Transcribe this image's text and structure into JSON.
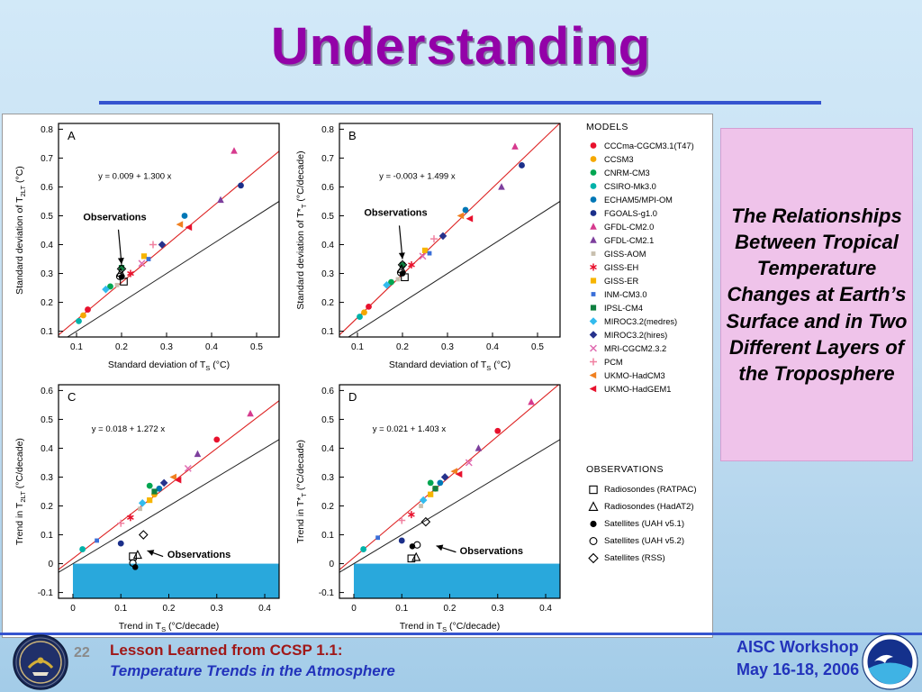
{
  "slide": {
    "title": "Understanding",
    "side_note": "The Relationships Between Tropical Temperature Changes at Earth’s Surface and in Two Different Layers of the Troposphere",
    "page_number": "22",
    "footer": {
      "credit_line1": "Lesson Learned from CCSP 1.1:",
      "credit_line2": "Temperature Trends in the Atmosphere",
      "event": "AISC Workshop",
      "dates": "May 16-18, 2006"
    },
    "colors": {
      "title_color": "#9302a8",
      "accent_color": "#3554cf",
      "note_bg": "#efc3ea",
      "footer_red": "#a01818",
      "footer_blue": "#2233bb"
    }
  },
  "figure": {
    "models_header": "MODELS",
    "observations_header": "OBSERVATIONS"
  },
  "chart_data": {
    "type": "scatter",
    "fit_color": "#dd2222",
    "identity_color": "#222222",
    "models": [
      {
        "name": "CCCma-CGCM3.1(T47)",
        "color": "#e8112d",
        "marker": "circle"
      },
      {
        "name": "CCSM3",
        "color": "#f5a800",
        "marker": "circle"
      },
      {
        "name": "CNRM-CM3",
        "color": "#00a651",
        "marker": "circle"
      },
      {
        "name": "CSIRO-Mk3.0",
        "color": "#00b2a9",
        "marker": "circle"
      },
      {
        "name": "ECHAM5/MPI-OM",
        "color": "#0077b6",
        "marker": "circle"
      },
      {
        "name": "FGOALS-g1.0",
        "color": "#1b2f8a",
        "marker": "circle"
      },
      {
        "name": "GFDL-CM2.0",
        "color": "#d63a8e",
        "marker": "triangle-up"
      },
      {
        "name": "GFDL-CM2.1",
        "color": "#7d3f9d",
        "marker": "triangle-up"
      },
      {
        "name": "GISS-AOM",
        "color": "#c8bfae",
        "marker": "square-small"
      },
      {
        "name": "GISS-EH",
        "color": "#e8112d",
        "marker": "asterisk"
      },
      {
        "name": "GISS-ER",
        "color": "#f7b500",
        "marker": "square"
      },
      {
        "name": "INM-CM3.0",
        "color": "#3a6fd8",
        "marker": "square-small"
      },
      {
        "name": "IPSL-CM4",
        "color": "#0f8040",
        "marker": "square"
      },
      {
        "name": "MIROC3.2(medres)",
        "color": "#33bbee",
        "marker": "diamond"
      },
      {
        "name": "MIROC3.2(hires)",
        "color": "#26328c",
        "marker": "diamond"
      },
      {
        "name": "MRI-CGCM2.3.2",
        "color": "#e06bb0",
        "marker": "x-mark"
      },
      {
        "name": "PCM",
        "color": "#f080a0",
        "marker": "plus"
      },
      {
        "name": "UKMO-HadCM3",
        "color": "#f08020",
        "marker": "triangle-left"
      },
      {
        "name": "UKMO-HadGEM1",
        "color": "#e8112d",
        "marker": "triangle-left"
      }
    ],
    "observation_series": [
      {
        "name": "Radiosondes (RATPAC)",
        "marker": "open-square"
      },
      {
        "name": "Radiosondes (HadAT2)",
        "marker": "open-triangle"
      },
      {
        "name": "Satellites (UAH v5.1)",
        "marker": "dot"
      },
      {
        "name": "Satellites (UAH v5.2)",
        "marker": "open-circle"
      },
      {
        "name": "Satellites (RSS)",
        "marker": "open-diamond"
      }
    ],
    "panels": [
      {
        "id": "A",
        "equation": "y = 0.009 + 1.300 x",
        "fit": {
          "intercept": 0.009,
          "slope": 1.3
        },
        "xlabel": "Standard deviation of T~S~ (°C)",
        "ylabel": "Standard deviation of T~2LT~ (°C)",
        "xlim": [
          0.06,
          0.55
        ],
        "ylim": [
          0.08,
          0.82
        ],
        "xticks": [
          0.1,
          0.2,
          0.3,
          0.4,
          0.5
        ],
        "yticks": [
          0.1,
          0.2,
          0.3,
          0.4,
          0.5,
          0.6,
          0.7,
          0.8
        ],
        "eq_pos": [
          0.18,
          0.26
        ],
        "points": [
          [
            0.125,
            0.175
          ],
          [
            0.115,
            0.155
          ],
          [
            0.175,
            0.255
          ],
          [
            0.105,
            0.135
          ],
          [
            0.34,
            0.5
          ],
          [
            0.465,
            0.605
          ],
          [
            0.45,
            0.725
          ],
          [
            0.42,
            0.555
          ],
          [
            0.19,
            0.26
          ],
          [
            0.22,
            0.3
          ],
          [
            0.25,
            0.36
          ],
          [
            0.26,
            0.35
          ],
          [
            0.2,
            0.32
          ],
          [
            0.165,
            0.245
          ],
          [
            0.29,
            0.4
          ],
          [
            0.245,
            0.335
          ],
          [
            0.27,
            0.4
          ],
          [
            0.33,
            0.47
          ],
          [
            0.35,
            0.46
          ]
        ],
        "observations": [
          [
            0.205,
            0.272
          ],
          [
            0.198,
            0.302
          ],
          [
            0.2,
            0.288
          ],
          [
            0.196,
            0.29
          ],
          [
            0.2,
            0.316
          ]
        ],
        "annotation": {
          "label": "Observations",
          "lx": 0.185,
          "ly": 0.485,
          "ax": 0.193,
          "ay": 0.452,
          "bx": 0.2,
          "by": 0.332
        },
        "shade": null
      },
      {
        "id": "B",
        "equation": "y = -0.003 + 1.499 x",
        "fit": {
          "intercept": -0.003,
          "slope": 1.499
        },
        "xlabel": "Standard deviation of T~S~ (°C)",
        "ylabel": "Standard deviation of T*~T~ (°C/decade)",
        "xlim": [
          0.06,
          0.55
        ],
        "ylim": [
          0.08,
          0.82
        ],
        "xticks": [
          0.1,
          0.2,
          0.3,
          0.4,
          0.5
        ],
        "yticks": [
          0.1,
          0.2,
          0.3,
          0.4,
          0.5,
          0.6,
          0.7,
          0.8
        ],
        "eq_pos": [
          0.18,
          0.26
        ],
        "points": [
          [
            0.125,
            0.185
          ],
          [
            0.115,
            0.165
          ],
          [
            0.175,
            0.27
          ],
          [
            0.105,
            0.15
          ],
          [
            0.34,
            0.52
          ],
          [
            0.465,
            0.675
          ],
          [
            0.45,
            0.74
          ],
          [
            0.42,
            0.6
          ],
          [
            0.19,
            0.28
          ],
          [
            0.22,
            0.33
          ],
          [
            0.25,
            0.38
          ],
          [
            0.26,
            0.37
          ],
          [
            0.2,
            0.33
          ],
          [
            0.165,
            0.26
          ],
          [
            0.29,
            0.43
          ],
          [
            0.245,
            0.36
          ],
          [
            0.27,
            0.42
          ],
          [
            0.33,
            0.5
          ],
          [
            0.35,
            0.49
          ]
        ],
        "observations": [
          [
            0.205,
            0.287
          ],
          [
            0.198,
            0.315
          ],
          [
            0.2,
            0.3
          ],
          [
            0.196,
            0.303
          ],
          [
            0.2,
            0.33
          ]
        ],
        "annotation": {
          "label": "Observations",
          "lx": 0.185,
          "ly": 0.5,
          "ax": 0.193,
          "ay": 0.466,
          "bx": 0.2,
          "by": 0.35
        },
        "shade": null
      },
      {
        "id": "C",
        "equation": "y = 0.018 + 1.272 x",
        "fit": {
          "intercept": 0.018,
          "slope": 1.272
        },
        "xlabel": "Trend in T~S~ (°C/decade)",
        "ylabel": "Trend in T~2LT~ (°C/decade)",
        "xlim": [
          -0.03,
          0.43
        ],
        "ylim": [
          -0.12,
          0.62
        ],
        "xticks": [
          0,
          0.1,
          0.2,
          0.3,
          0.4
        ],
        "yticks": [
          -0.1,
          0,
          0.1,
          0.2,
          0.3,
          0.4,
          0.5,
          0.6
        ],
        "eq_pos": [
          0.15,
          0.22
        ],
        "points": [
          [
            0.3,
            0.43
          ],
          [
            0.17,
            0.24
          ],
          [
            0.16,
            0.27
          ],
          [
            0.02,
            0.05
          ],
          [
            0.18,
            0.26
          ],
          [
            0.1,
            0.07
          ],
          [
            0.37,
            0.52
          ],
          [
            0.26,
            0.38
          ],
          [
            0.14,
            0.19
          ],
          [
            0.12,
            0.16
          ],
          [
            0.16,
            0.22
          ],
          [
            0.05,
            0.08
          ],
          [
            0.17,
            0.25
          ],
          [
            0.145,
            0.21
          ],
          [
            0.19,
            0.28
          ],
          [
            0.24,
            0.33
          ],
          [
            0.1,
            0.14
          ],
          [
            0.21,
            0.3
          ],
          [
            0.22,
            0.29
          ]
        ],
        "observations": [
          [
            0.125,
            0.025
          ],
          [
            0.135,
            0.03
          ],
          [
            0.13,
            -0.012
          ],
          [
            0.125,
            0.002
          ],
          [
            0.147,
            0.1
          ]
        ],
        "annotation": {
          "label": "Observations",
          "lx": 0.263,
          "ly": 0.02,
          "ax": 0.188,
          "ay": 0.025,
          "bx": 0.155,
          "by": 0.045
        },
        "shade": {
          "x0": 0,
          "x1": 0.43,
          "y0": -0.12,
          "y1": 0,
          "color": "#29a8dc"
        }
      },
      {
        "id": "D",
        "equation": "y = 0.021 + 1.403 x",
        "fit": {
          "intercept": 0.021,
          "slope": 1.403
        },
        "xlabel": "Trend in T~S~ (°C/decade)",
        "ylabel": "Trend in T*~T~ (°C/decade)",
        "xlim": [
          -0.03,
          0.43
        ],
        "ylim": [
          -0.12,
          0.62
        ],
        "xticks": [
          0,
          0.1,
          0.2,
          0.3,
          0.4
        ],
        "yticks": [
          -0.1,
          0,
          0.1,
          0.2,
          0.3,
          0.4,
          0.5,
          0.6
        ],
        "eq_pos": [
          0.15,
          0.22
        ],
        "points": [
          [
            0.3,
            0.46
          ],
          [
            0.17,
            0.26
          ],
          [
            0.16,
            0.28
          ],
          [
            0.02,
            0.05
          ],
          [
            0.18,
            0.28
          ],
          [
            0.1,
            0.08
          ],
          [
            0.37,
            0.56
          ],
          [
            0.26,
            0.4
          ],
          [
            0.14,
            0.2
          ],
          [
            0.12,
            0.17
          ],
          [
            0.16,
            0.24
          ],
          [
            0.05,
            0.09
          ],
          [
            0.17,
            0.26
          ],
          [
            0.145,
            0.22
          ],
          [
            0.19,
            0.3
          ],
          [
            0.24,
            0.35
          ],
          [
            0.1,
            0.15
          ],
          [
            0.21,
            0.32
          ],
          [
            0.22,
            0.31
          ]
        ],
        "observations": [
          [
            0.12,
            0.018
          ],
          [
            0.13,
            0.022
          ],
          [
            0.122,
            0.06
          ],
          [
            0.132,
            0.065
          ],
          [
            0.15,
            0.145
          ]
        ],
        "annotation": {
          "label": "Observations",
          "lx": 0.287,
          "ly": 0.033,
          "ax": 0.213,
          "ay": 0.04,
          "bx": 0.172,
          "by": 0.062
        },
        "shade": {
          "x0": 0,
          "x1": 0.43,
          "y0": -0.12,
          "y1": 0,
          "color": "#29a8dc"
        }
      }
    ]
  }
}
